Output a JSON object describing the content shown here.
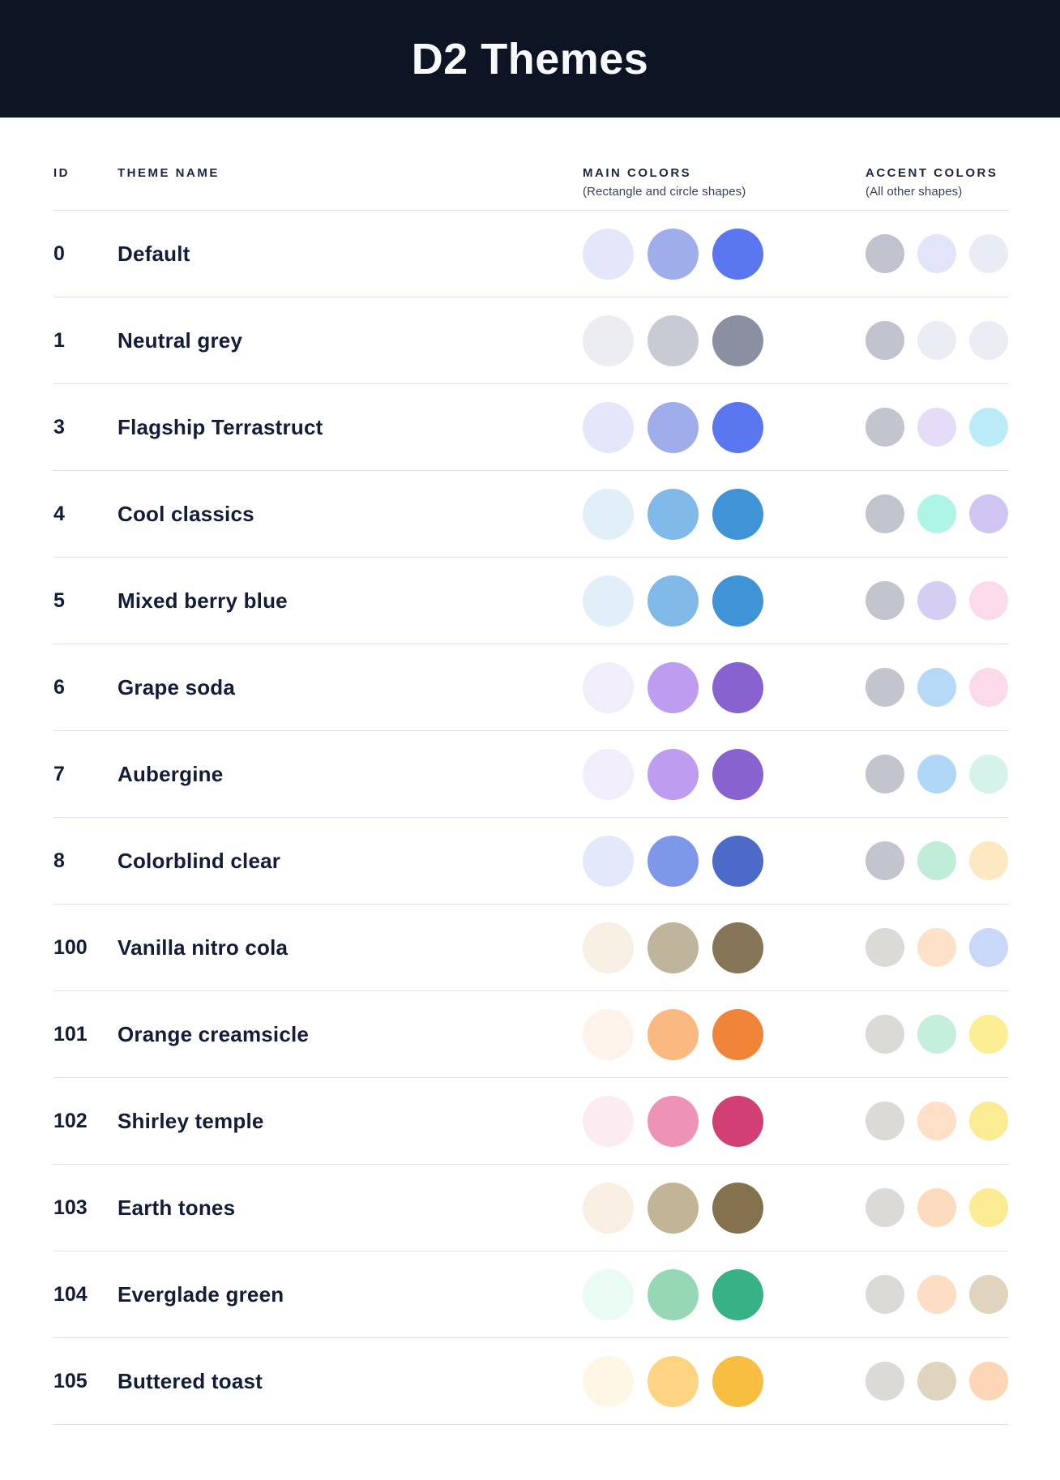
{
  "page": {
    "bg": "#FFFFFF",
    "divider_color": "#DDE0EA",
    "text_color": "#141D38",
    "header_bg": "#0D1424",
    "header_text_color": "#F8F9FB"
  },
  "header": {
    "title": "D2 Themes"
  },
  "columns": {
    "id_label": "ID",
    "name_label": "THEME NAME",
    "main_label": "MAIN COLORS",
    "main_caption": "(Rectangle and circle shapes)",
    "accent_label": "ACCENT COLORS",
    "accent_caption": "(All other shapes)"
  },
  "themes": [
    {
      "id": "0",
      "name": "Default",
      "main": [
        "#E4E7F9",
        "#9FADEB",
        "#5B77F0"
      ],
      "accent": [
        "#C0C2CE",
        "#E2E4F9",
        "#E9ECF4"
      ]
    },
    {
      "id": "1",
      "name": "Neutral grey",
      "main": [
        "#EBEDF2",
        "#C8CBD3",
        "#8A8FA1"
      ],
      "accent": [
        "#C0C2CE",
        "#EAEDF4",
        "#EAEDF4"
      ]
    },
    {
      "id": "3",
      "name": "Flagship Terrastruct",
      "main": [
        "#E4E7F9",
        "#9FADEB",
        "#5B77F0"
      ],
      "accent": [
        "#C2C4CE",
        "#E5DCF7",
        "#BCEBF8"
      ]
    },
    {
      "id": "4",
      "name": "Cool classics",
      "main": [
        "#E1EFF9",
        "#81BAE8",
        "#3F93D7"
      ],
      "accent": [
        "#C2C4CE",
        "#AFF5E6",
        "#CFC4F2"
      ]
    },
    {
      "id": "5",
      "name": "Mixed berry blue",
      "main": [
        "#E1EFF9",
        "#81BAE8",
        "#3F93D7"
      ],
      "accent": [
        "#C2C4CE",
        "#D6CDF3",
        "#FBDAEB"
      ]
    },
    {
      "id": "6",
      "name": "Grape soda",
      "main": [
        "#F1EDFA",
        "#BE9CEF",
        "#8862CF"
      ],
      "accent": [
        "#C2C4CE",
        "#B6D9F8",
        "#FBDAEB"
      ]
    },
    {
      "id": "7",
      "name": "Aubergine",
      "main": [
        "#F1EDFA",
        "#BE9CEF",
        "#8862CF"
      ],
      "accent": [
        "#C2C4CE",
        "#B0D7F7",
        "#D6F3EB"
      ]
    },
    {
      "id": "8",
      "name": "Colorblind clear",
      "main": [
        "#E3E9FA",
        "#7D97E9",
        "#4C6AC8"
      ],
      "accent": [
        "#C2C4CE",
        "#BFEDD8",
        "#FCE9C1"
      ]
    },
    {
      "id": "100",
      "name": "Vanilla nitro cola",
      "main": [
        "#F8EFE4",
        "#BFB49C",
        "#877557"
      ],
      "accent": [
        "#DBDAD6",
        "#FDE1C9",
        "#C9D7F8"
      ]
    },
    {
      "id": "101",
      "name": "Orange creamsicle",
      "main": [
        "#FEF3EB",
        "#F9B981",
        "#F0853A"
      ],
      "accent": [
        "#DBDAD6",
        "#C4EFDB",
        "#FBEE93"
      ]
    },
    {
      "id": "102",
      "name": "Shirley temple",
      "main": [
        "#FDEBF2",
        "#EF92B7",
        "#D23F75"
      ],
      "accent": [
        "#DBDAD6",
        "#FDE0C6",
        "#FBEB92"
      ]
    },
    {
      "id": "103",
      "name": "Earth tones",
      "main": [
        "#F8EEE2",
        "#C2B596",
        "#84724E"
      ],
      "accent": [
        "#DBDAD6",
        "#FDDBBE",
        "#FBEB92"
      ]
    },
    {
      "id": "104",
      "name": "Everglade green",
      "main": [
        "#EAFBF3",
        "#96D8B6",
        "#37B286"
      ],
      "accent": [
        "#DBDAD6",
        "#FDDEC4",
        "#DFD4BE"
      ]
    },
    {
      "id": "105",
      "name": "Buttered toast",
      "main": [
        "#FFF7E5",
        "#FCD483",
        "#F8BE41"
      ],
      "accent": [
        "#DBDAD6",
        "#DFD4BE",
        "#FDD6B6"
      ]
    }
  ]
}
